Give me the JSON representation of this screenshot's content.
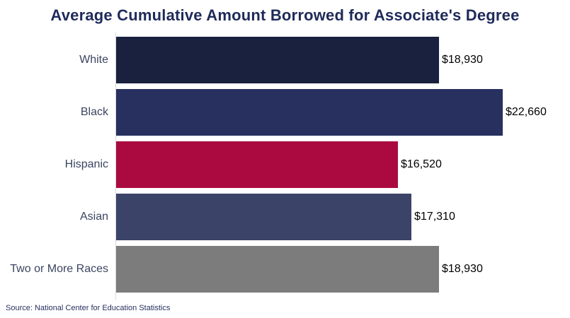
{
  "title": "Average Cumulative Amount Borrowed for Associate's Degree",
  "source": "Source: National Center for Education Statistics",
  "colors": {
    "title_text": "#1f2a5a",
    "category_label_text": "#3b4560",
    "value_label_text": "#000000",
    "axis_line": "#d9d9d9",
    "background": "#ffffff"
  },
  "chart_data": {
    "type": "bar",
    "orientation": "horizontal",
    "title": "Average Cumulative Amount Borrowed for Associate's Degree",
    "xlabel": "",
    "ylabel": "",
    "categories": [
      "White",
      "Black",
      "Hispanic",
      "Asian",
      "Two or More Races"
    ],
    "values": [
      18930,
      22660,
      16520,
      17310,
      18930
    ],
    "value_labels": [
      "$18,930",
      "$22,660",
      "$16,520",
      "$17,310",
      "$18,930"
    ],
    "bar_colors": [
      "#19213f",
      "#27305f",
      "#ab0a40",
      "#3b4468",
      "#7c7c7c"
    ],
    "xlim": [
      0,
      22660
    ],
    "grid": false,
    "legend": false,
    "source": "Source: National Center for Education Statistics"
  }
}
